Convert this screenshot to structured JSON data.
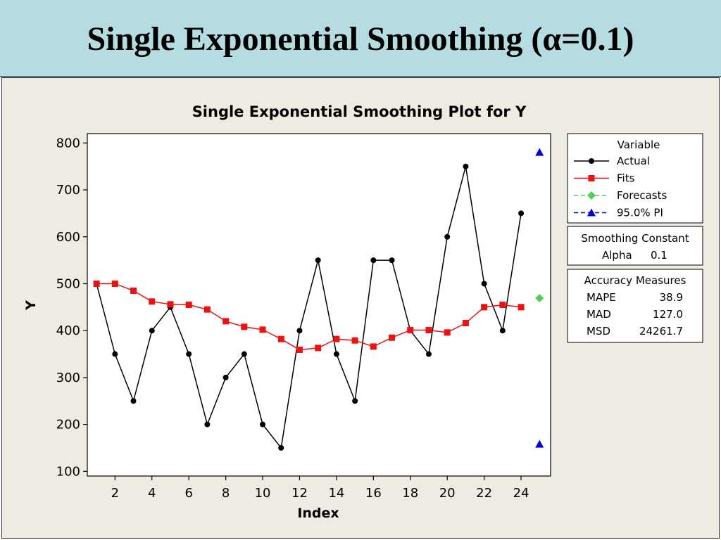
{
  "slide": {
    "title": "Single Exponential Smoothing (α=0.1)"
  },
  "colors": {
    "header_bg": "#b4dce1",
    "panel_bg": "#eeebe2",
    "actual": "#000000",
    "fits": "#ee1111",
    "forecasts": "#55cc55",
    "pi": "#0000dd"
  },
  "chart_data": {
    "type": "line",
    "title": "Single Exponential Smoothing Plot for Y",
    "xlabel": "Index",
    "ylabel": "Y",
    "xlim": [
      0.5,
      25.6
    ],
    "ylim": [
      90,
      820
    ],
    "x_ticks": [
      2,
      4,
      6,
      8,
      10,
      12,
      14,
      16,
      18,
      20,
      22,
      24
    ],
    "y_ticks": [
      100,
      200,
      300,
      400,
      500,
      600,
      700,
      800
    ],
    "grid": false,
    "legend_position": "right",
    "series": [
      {
        "name": "Actual",
        "marker": "circle",
        "style": "solid",
        "color": "#000000",
        "x": [
          1,
          2,
          3,
          4,
          5,
          6,
          7,
          8,
          9,
          10,
          11,
          12,
          13,
          14,
          15,
          16,
          17,
          18,
          19,
          20,
          21,
          22,
          23,
          24
        ],
        "values": [
          500,
          350,
          250,
          400,
          450,
          350,
          200,
          300,
          350,
          200,
          150,
          400,
          550,
          350,
          250,
          550,
          550,
          400,
          350,
          600,
          750,
          500,
          400,
          650
        ]
      },
      {
        "name": "Fits",
        "marker": "square",
        "style": "solid",
        "color": "#ee1111",
        "x": [
          1,
          2,
          3,
          4,
          5,
          6,
          7,
          8,
          9,
          10,
          11,
          12,
          13,
          14,
          15,
          16,
          17,
          18,
          19,
          20,
          21,
          22,
          23,
          24
        ],
        "values": [
          500,
          500,
          485,
          462,
          456,
          455,
          445,
          420,
          408,
          402,
          382,
          359,
          363,
          382,
          379,
          366,
          385,
          401,
          401,
          396,
          416,
          450,
          455,
          450
        ]
      },
      {
        "name": "Forecasts",
        "marker": "diamond",
        "style": "dashed",
        "color": "#55cc55",
        "x": [
          25
        ],
        "values": [
          469
        ]
      },
      {
        "name": "95.0% PI",
        "marker": "triangle",
        "style": "dashed",
        "color": "#0000dd",
        "x": [
          25,
          25
        ],
        "values": [
          780,
          158
        ]
      }
    ],
    "legend_title": "Variable",
    "smoothing_box": {
      "title": "Smoothing Constant",
      "label": "Alpha",
      "value": "0.1"
    },
    "accuracy_box": {
      "title": "Accuracy Measures",
      "rows": [
        {
          "label": "MAPE",
          "value": "38.9"
        },
        {
          "label": "MAD",
          "value": "127.0"
        },
        {
          "label": "MSD",
          "value": "24261.7"
        }
      ]
    }
  }
}
